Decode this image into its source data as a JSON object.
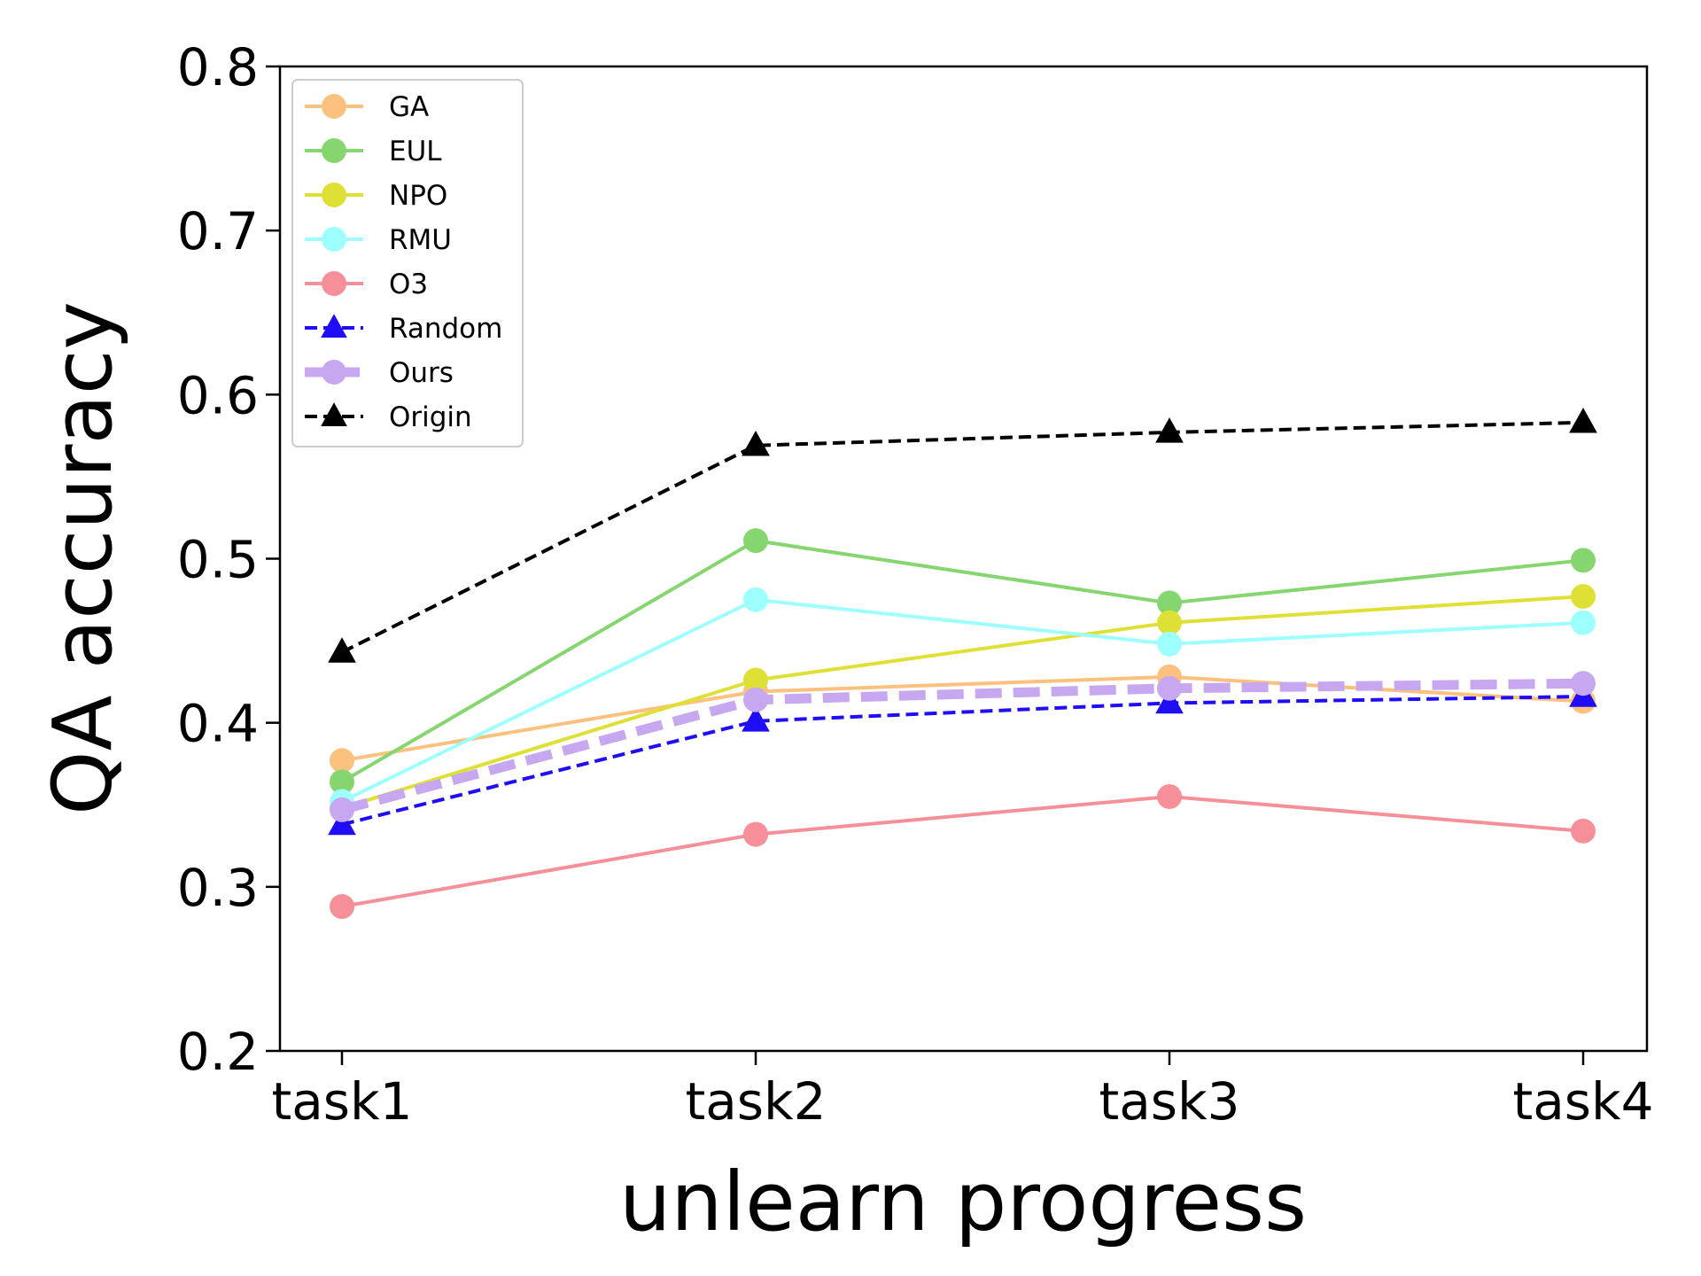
{
  "chart_data": {
    "type": "line",
    "title": "",
    "xlabel": "unlearn progress",
    "ylabel": "QA accuracy",
    "categories": [
      "task1",
      "task2",
      "task3",
      "task4"
    ],
    "ylim": [
      0.2,
      0.8
    ],
    "yticks": [
      "0.2",
      "0.3",
      "0.4",
      "0.5",
      "0.6",
      "0.7",
      "0.8"
    ],
    "grid": false,
    "legend_position": "top-left",
    "series": [
      {
        "name": "GA",
        "values": [
          0.377,
          0.419,
          0.428,
          0.413
        ],
        "color": "#fcc07f",
        "marker": "circle",
        "line": "solid"
      },
      {
        "name": "EUL",
        "values": [
          0.364,
          0.511,
          0.473,
          0.499
        ],
        "color": "#85d66e",
        "marker": "circle",
        "line": "solid"
      },
      {
        "name": "NPO",
        "values": [
          0.348,
          0.426,
          0.461,
          0.477
        ],
        "color": "#dfe036",
        "marker": "circle",
        "line": "solid"
      },
      {
        "name": "RMU",
        "values": [
          0.352,
          0.475,
          0.448,
          0.461
        ],
        "color": "#9effff",
        "marker": "circle",
        "line": "solid"
      },
      {
        "name": "O3",
        "values": [
          0.288,
          0.332,
          0.355,
          0.334
        ],
        "color": "#f78f98",
        "marker": "circle",
        "line": "solid"
      },
      {
        "name": "Random",
        "values": [
          0.338,
          0.401,
          0.412,
          0.416
        ],
        "color": "#1f0df5",
        "marker": "triangle",
        "line": "dashed"
      },
      {
        "name": "Ours",
        "values": [
          0.347,
          0.414,
          0.421,
          0.424
        ],
        "color": "#c7a7ef",
        "marker": "circle",
        "line": "thickdash"
      },
      {
        "name": "Origin",
        "values": [
          0.443,
          0.569,
          0.577,
          0.583
        ],
        "color": "#000000",
        "marker": "triangle",
        "line": "dashed"
      }
    ]
  }
}
